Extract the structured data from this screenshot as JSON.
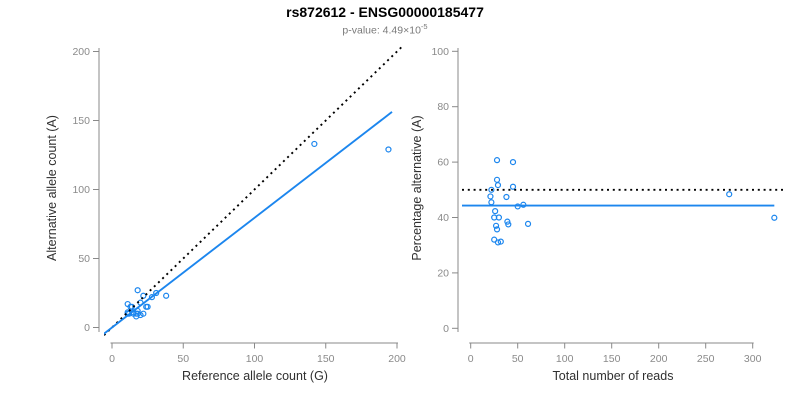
{
  "header": {
    "title": "rs872612 - ENSG00000185477",
    "variant_id": "rs872612",
    "gene_id": "ENSG00000185477",
    "subtitle": "p-value: 4.49×10⁻⁵",
    "subtitle_base": "p-value: 4.49×10",
    "subtitle_exponent": "-5"
  },
  "colors": {
    "point": "#1C86EE",
    "fit_line": "#1C86EE",
    "reference_line": "#000000",
    "axis": "#898989",
    "tick_label": "#8a8a8a",
    "axis_title": "#303030",
    "subtitle": "#7a7a7a",
    "title": "#000000",
    "background": "#ffffff"
  },
  "chart_data": [
    {
      "type": "scatter",
      "panel": "left",
      "xlabel": "Reference allele count (G)",
      "ylabel": "Alternative allele count (A)",
      "xlim": [
        0,
        200
      ],
      "ylim": [
        0,
        200
      ],
      "xticks": [
        0,
        50,
        100,
        150,
        200
      ],
      "yticks": [
        0,
        50,
        100,
        150,
        200
      ],
      "grid": false,
      "legend": "none",
      "points": [
        [
          11,
          17
        ],
        [
          18,
          27
        ],
        [
          13,
          15
        ],
        [
          14,
          15
        ],
        [
          22,
          23
        ],
        [
          11,
          11
        ],
        [
          11,
          10
        ],
        [
          20,
          18
        ],
        [
          12,
          10
        ],
        [
          28,
          22
        ],
        [
          31,
          25
        ],
        [
          15,
          11
        ],
        [
          15,
          10
        ],
        [
          18,
          12
        ],
        [
          24,
          15
        ],
        [
          25,
          15
        ],
        [
          38,
          23
        ],
        [
          17,
          10
        ],
        [
          18,
          10
        ],
        [
          17,
          8
        ],
        [
          20,
          9
        ],
        [
          22,
          10
        ],
        [
          142,
          133
        ],
        [
          194,
          129
        ]
      ],
      "lines": [
        {
          "name": "identity-line",
          "label": "y = x (50% expectation)",
          "style": "dotted",
          "color": "#000000",
          "slope": 1,
          "intercept": 0
        },
        {
          "name": "fit-line",
          "label": "fitted allelic ratio",
          "style": "solid",
          "color": "#1C86EE",
          "slope": 0.795,
          "intercept": 0,
          "x_extent": [
            -6,
            196.5
          ]
        }
      ]
    },
    {
      "type": "scatter",
      "panel": "right",
      "xlabel": "Total number of reads",
      "ylabel": "Percentage alternative (A)",
      "xlim": [
        0,
        335
      ],
      "ylim": [
        0,
        100
      ],
      "xticks": [
        0,
        50,
        100,
        150,
        200,
        250,
        300
      ],
      "yticks": [
        0,
        20,
        40,
        60,
        80,
        100
      ],
      "grid": false,
      "legend": "none",
      "points": [
        [
          28,
          60.7
        ],
        [
          45,
          60.0
        ],
        [
          28,
          53.6
        ],
        [
          29,
          51.7
        ],
        [
          45,
          51.1
        ],
        [
          22,
          50.0
        ],
        [
          21,
          47.6
        ],
        [
          38,
          47.4
        ],
        [
          22,
          45.5
        ],
        [
          50,
          44.0
        ],
        [
          56,
          44.6
        ],
        [
          26,
          42.3
        ],
        [
          25,
          40.0
        ],
        [
          30,
          40.0
        ],
        [
          39,
          38.5
        ],
        [
          40,
          37.5
        ],
        [
          61,
          37.7
        ],
        [
          27,
          37.0
        ],
        [
          28,
          35.7
        ],
        [
          25,
          32.0
        ],
        [
          29,
          31.0
        ],
        [
          32,
          31.3
        ],
        [
          275,
          48.4
        ],
        [
          323,
          39.9
        ]
      ],
      "lines": [
        {
          "name": "expected-50pct-line",
          "label": "50% expectation",
          "style": "dotted",
          "color": "#000000",
          "y": 50
        },
        {
          "name": "mean-percentage-line",
          "label": "mean percentage alternative",
          "style": "solid",
          "color": "#1C86EE",
          "y": 44.3,
          "x_extent": [
            -12,
            323
          ]
        }
      ]
    }
  ]
}
